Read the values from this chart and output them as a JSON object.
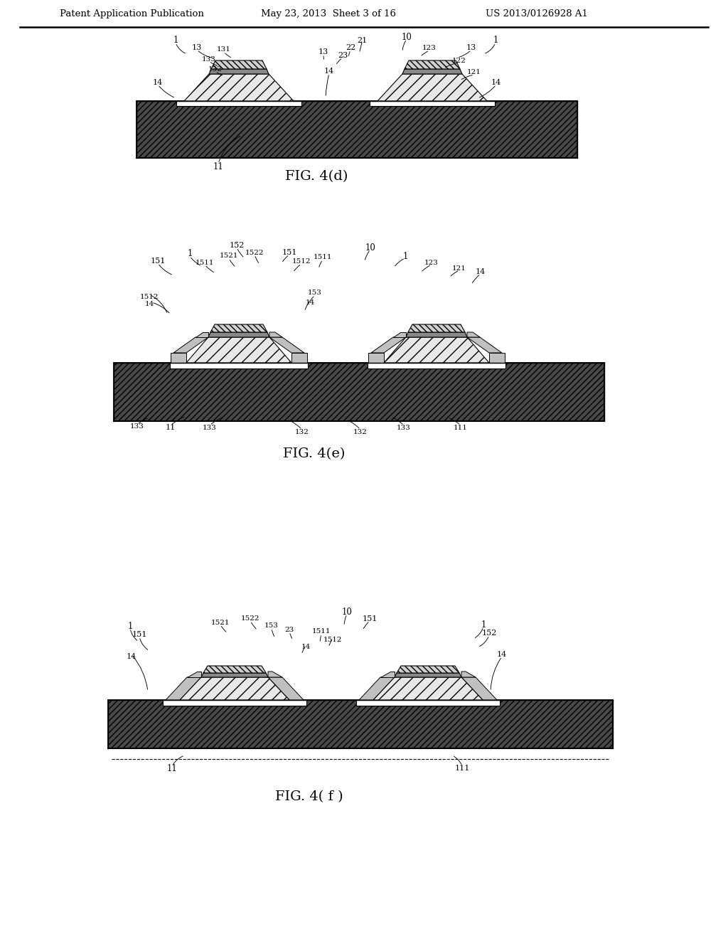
{
  "bg_color": "#ffffff",
  "header_left": "Patent Application Publication",
  "header_mid": "May 23, 2013  Sheet 3 of 16",
  "header_right": "US 2013/0126928 A1",
  "fig4d_label": "FIG. 4(d)",
  "fig4e_label": "FIG. 4(e)",
  "fig4f_label": "FIG. 4( f )",
  "substrate_fc": "#484848",
  "substrate_hatch": "////",
  "nlayer_fc": "#e8e8e8",
  "nlayer_hatch": "//",
  "active_fc": "#888888",
  "player_fc": "#d0d0d0",
  "player_hatch": "\\\\\\\\",
  "white": "#ffffff",
  "coat_fc": "#c0c0c0"
}
